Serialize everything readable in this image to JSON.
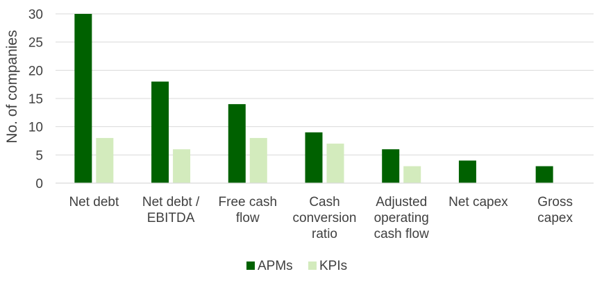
{
  "chart_data": {
    "type": "bar",
    "title": "",
    "xlabel": "",
    "ylabel": "No. of companies",
    "ylim": [
      0,
      30
    ],
    "yticks": [
      0,
      5,
      10,
      15,
      20,
      25,
      30
    ],
    "grid": true,
    "legend_position": "bottom",
    "categories": [
      [
        "Net debt"
      ],
      [
        "Net debt /",
        "EBITDA"
      ],
      [
        "Free cash",
        "flow"
      ],
      [
        "Cash",
        "conversion",
        "ratio"
      ],
      [
        "Adjusted",
        "operating",
        "cash flow"
      ],
      [
        "Net capex"
      ],
      [
        "Gross",
        "capex"
      ]
    ],
    "series": [
      {
        "name": "APMs",
        "color": "#006100",
        "values": [
          30,
          18,
          14,
          9,
          6,
          4,
          3
        ]
      },
      {
        "name": "KPIs",
        "color": "#d3ebbd",
        "values": [
          8,
          6,
          8,
          7,
          3,
          0,
          0
        ]
      }
    ]
  }
}
